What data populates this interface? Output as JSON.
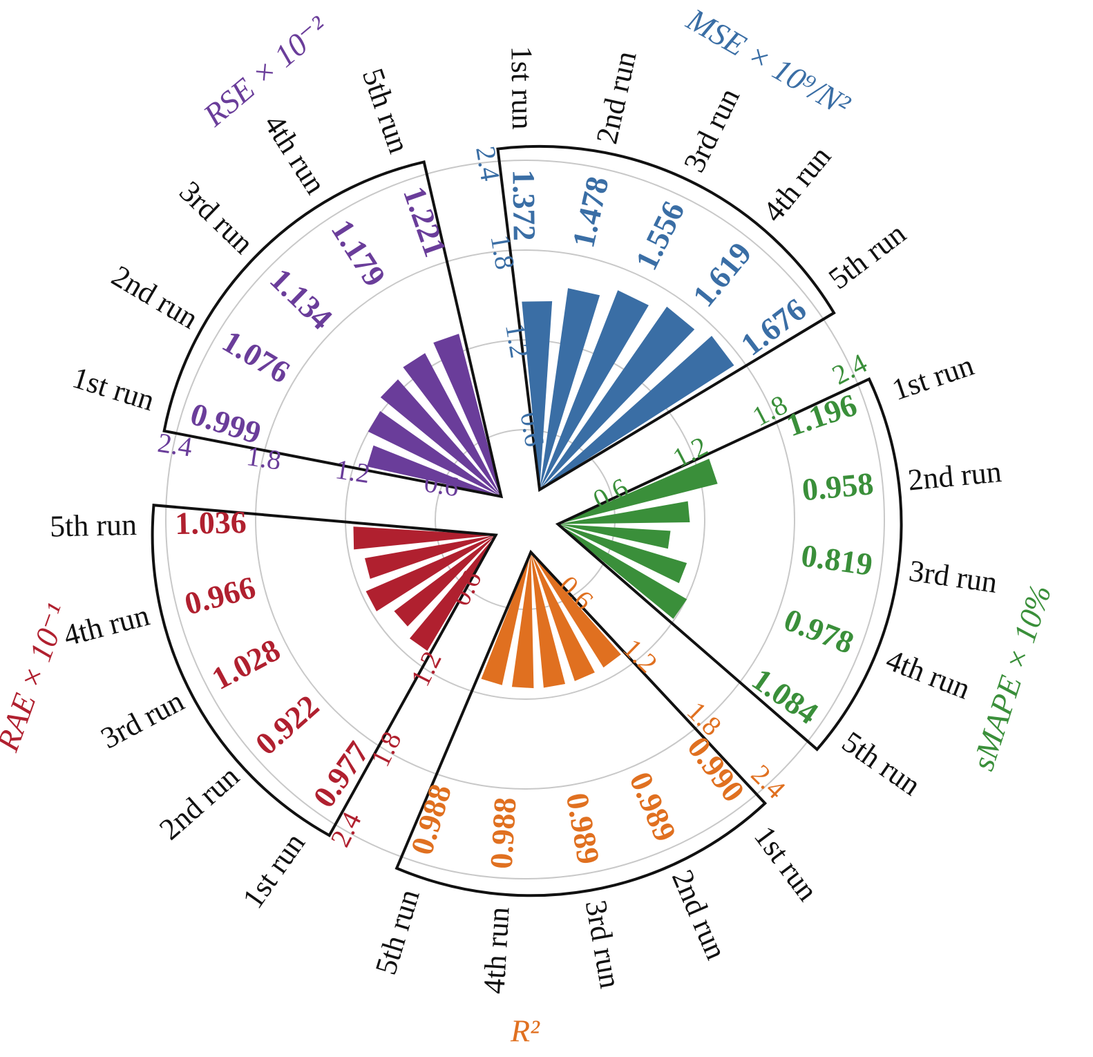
{
  "chart_data": {
    "type": "radial-bar",
    "run_labels": [
      "1st run",
      "2nd run",
      "3rd run",
      "4th run",
      "5th run"
    ],
    "radial_ticks": [
      "0.6",
      "1.2",
      "1.8",
      "2.4"
    ],
    "tick_values": [
      0.6,
      1.2,
      1.8,
      2.4
    ],
    "rmax": 2.4,
    "panels": [
      {
        "title": "MSE × 10⁹/N²",
        "color": "#3a6ea5",
        "values": [
          1.372,
          1.478,
          1.556,
          1.619,
          1.676
        ],
        "value_labels": [
          "1.372",
          "1.478",
          "1.556",
          "1.619",
          "1.676"
        ]
      },
      {
        "title": "sMAPE × 10%",
        "color": "#3a8f3a",
        "values": [
          1.196,
          0.958,
          0.819,
          0.978,
          1.084
        ],
        "value_labels": [
          "1.196",
          "0.958",
          "0.819",
          "0.978",
          "1.084"
        ]
      },
      {
        "title": "R²",
        "color": "#e07020",
        "values": [
          0.99,
          0.989,
          0.989,
          0.988,
          0.988
        ],
        "value_labels": [
          "0.990",
          "0.989",
          "0.989",
          "0.988",
          "0.988"
        ]
      },
      {
        "title": "RAE × 10⁻¹",
        "color": "#b0202f",
        "values": [
          0.977,
          0.922,
          1.028,
          0.966,
          1.036
        ],
        "value_labels": [
          "0.977",
          "0.922",
          "1.028",
          "0.966",
          "1.036"
        ]
      },
      {
        "title": "RSE × 10⁻²",
        "color": "#6a3d9a",
        "values": [
          0.999,
          1.076,
          1.134,
          1.179,
          1.221
        ],
        "value_labels": [
          "0.999",
          "1.076",
          "1.134",
          "1.179",
          "1.221"
        ]
      }
    ]
  }
}
